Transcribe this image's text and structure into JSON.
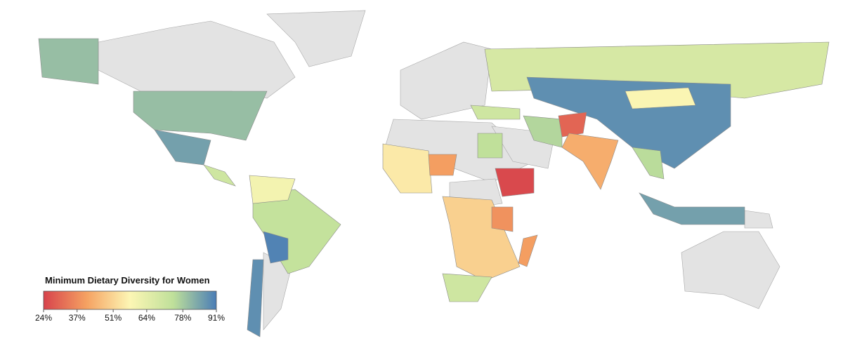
{
  "chart_data": {
    "type": "choropleth",
    "legend_title": "Minimum Dietary Diversity for Women",
    "clim": [
      24,
      91
    ],
    "ticks": [
      {
        "value": 24,
        "label": "24%"
      },
      {
        "value": 37,
        "label": "37%"
      },
      {
        "value": 51,
        "label": "51%"
      },
      {
        "value": 64,
        "label": "64%"
      },
      {
        "value": 78,
        "label": "78%"
      },
      {
        "value": 91,
        "label": "91%"
      }
    ],
    "colormap": [
      "#d7434c",
      "#f5a262",
      "#fcf6b4",
      "#bfe09a",
      "#4a7db6"
    ],
    "values": [
      80,
      80,
      85,
      70,
      73,
      60,
      90,
      88,
      68,
      88,
      58,
      76,
      30,
      43,
      75,
      85,
      25,
      55,
      40,
      50,
      70,
      40,
      74,
      70,
      38
    ]
  }
}
